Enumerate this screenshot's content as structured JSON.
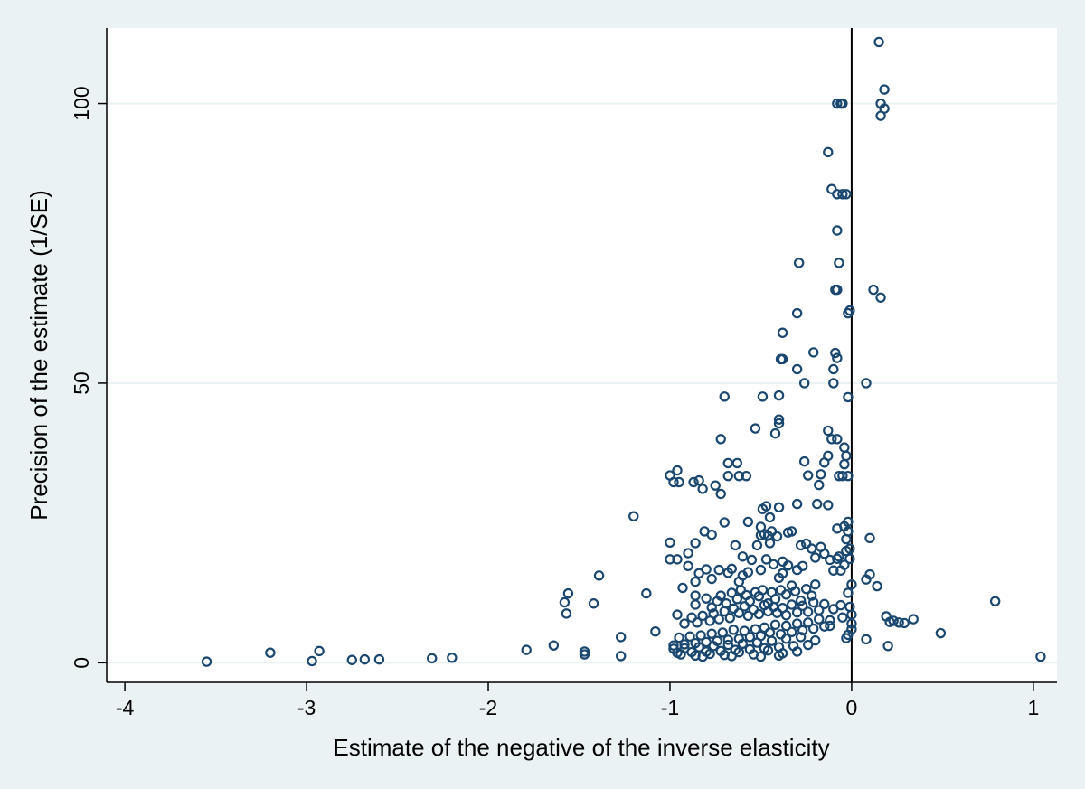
{
  "chart_data": {
    "type": "scatter",
    "title": "",
    "xlabel": "Estimate of the negative of the inverse elasticity",
    "ylabel": "Precision of the estimate (1/SE)",
    "xlim": [
      -4.1,
      1.13
    ],
    "ylim": [
      -3.5,
      113.5
    ],
    "x_ticks": [
      -4,
      -3,
      -2,
      -1,
      0,
      1
    ],
    "x_tick_labels": [
      "-4",
      "-3",
      "-2",
      "-1",
      "0",
      "1"
    ],
    "y_ticks": [
      0,
      50,
      100
    ],
    "y_tick_labels": [
      "0",
      "50",
      "100"
    ],
    "grid": "horizontal",
    "reference_line_x": 0,
    "marker": "hollow-circle",
    "colors": {
      "marker": "#1a476f",
      "background": "#eaf2f3",
      "plot_area": "#ffffff",
      "grid": "#eaf2f3",
      "axis": "#000000"
    },
    "points": [
      [
        -3.55,
        0.2
      ],
      [
        -3.2,
        1.8
      ],
      [
        -2.97,
        0.3
      ],
      [
        -2.93,
        2.1
      ],
      [
        -2.75,
        0.5
      ],
      [
        -2.68,
        0.6
      ],
      [
        -2.6,
        0.6
      ],
      [
        -2.31,
        0.8
      ],
      [
        -2.2,
        0.9
      ],
      [
        -1.79,
        2.3
      ],
      [
        -1.64,
        3.1
      ],
      [
        -1.47,
        1.5
      ],
      [
        -1.47,
        2.0
      ],
      [
        -1.27,
        1.2
      ],
      [
        -1.27,
        4.6
      ],
      [
        -1.57,
        8.8
      ],
      [
        -1.58,
        10.8
      ],
      [
        -1.56,
        12.4
      ],
      [
        -1.42,
        10.6
      ],
      [
        -1.39,
        15.6
      ],
      [
        -1.2,
        26.2
      ],
      [
        -1.13,
        12.4
      ],
      [
        -1.08,
        5.6
      ],
      [
        -1.0,
        33.5
      ],
      [
        -0.98,
        32.3
      ],
      [
        -0.96,
        34.4
      ],
      [
        -0.95,
        32.3
      ],
      [
        -0.87,
        32.3
      ],
      [
        -0.84,
        32.6
      ],
      [
        -0.82,
        31.1
      ],
      [
        -0.75,
        31.7
      ],
      [
        -0.72,
        30.2
      ],
      [
        -0.7,
        47.6
      ],
      [
        -0.72,
        40.0
      ],
      [
        -0.68,
        35.7
      ],
      [
        -0.68,
        33.4
      ],
      [
        -0.63,
        35.7
      ],
      [
        -0.62,
        33.4
      ],
      [
        -0.58,
        33.4
      ],
      [
        -1.0,
        21.5
      ],
      [
        -1.0,
        18.5
      ],
      [
        -0.96,
        18.5
      ],
      [
        -0.9,
        19.6
      ],
      [
        -0.86,
        21.4
      ],
      [
        -0.81,
        23.5
      ],
      [
        -0.77,
        22.9
      ],
      [
        -0.7,
        25.1
      ],
      [
        -0.64,
        21.0
      ],
      [
        -0.6,
        19.0
      ],
      [
        -0.57,
        25.2
      ],
      [
        -0.53,
        41.9
      ],
      [
        -0.49,
        47.6
      ],
      [
        -0.49,
        27.5
      ],
      [
        -0.47,
        28.0
      ],
      [
        -0.45,
        26.0
      ],
      [
        -0.4,
        47.8
      ],
      [
        -0.4,
        43.5
      ],
      [
        -0.4,
        42.8
      ],
      [
        -0.42,
        41.0
      ],
      [
        -0.39,
        54.3
      ],
      [
        -0.38,
        54.3
      ],
      [
        -0.38,
        59.0
      ],
      [
        -0.3,
        62.5
      ],
      [
        -0.29,
        71.5
      ],
      [
        -0.3,
        52.5
      ],
      [
        -0.26,
        50.0
      ],
      [
        -0.21,
        55.5
      ],
      [
        -0.13,
        91.3
      ],
      [
        -0.11,
        84.7
      ],
      [
        -0.08,
        83.8
      ],
      [
        -0.05,
        83.8
      ],
      [
        -0.03,
        83.8
      ],
      [
        -0.08,
        100.0
      ],
      [
        -0.06,
        100.0
      ],
      [
        -0.05,
        100.0
      ],
      [
        -0.08,
        77.3
      ],
      [
        -0.07,
        71.5
      ],
      [
        -0.09,
        66.7
      ],
      [
        -0.08,
        66.7
      ],
      [
        -0.02,
        62.5
      ],
      [
        -0.01,
        63.0
      ],
      [
        -0.09,
        55.4
      ],
      [
        -0.1,
        52.5
      ],
      [
        -0.08,
        54.5
      ],
      [
        -0.1,
        50.0
      ],
      [
        -0.02,
        47.5
      ],
      [
        -0.13,
        41.5
      ],
      [
        -0.11,
        40.0
      ],
      [
        -0.08,
        40.0
      ],
      [
        -0.04,
        38.5
      ],
      [
        -0.03,
        37.0
      ],
      [
        -0.04,
        35.5
      ],
      [
        -0.07,
        33.4
      ],
      [
        -0.05,
        33.4
      ],
      [
        -0.02,
        33.4
      ],
      [
        -0.13,
        37.0
      ],
      [
        -0.15,
        35.8
      ],
      [
        -0.17,
        33.7
      ],
      [
        -0.18,
        31.8
      ],
      [
        -0.19,
        28.4
      ],
      [
        -0.13,
        28.2
      ],
      [
        -0.26,
        36.0
      ],
      [
        -0.24,
        33.5
      ],
      [
        -0.3,
        28.4
      ],
      [
        -0.33,
        23.5
      ],
      [
        -0.35,
        23.3
      ],
      [
        -0.4,
        27.8
      ],
      [
        -0.41,
        22.6
      ],
      [
        -0.44,
        23.5
      ],
      [
        -0.46,
        22.7
      ],
      [
        -0.48,
        23.0
      ],
      [
        -0.5,
        22.8
      ],
      [
        -0.5,
        24.3
      ],
      [
        -0.52,
        21.0
      ],
      [
        -0.45,
        21.4
      ],
      [
        -0.02,
        25.2
      ],
      [
        -0.02,
        23.5
      ],
      [
        -0.04,
        24.4
      ],
      [
        -0.08,
        24.0
      ],
      [
        -0.03,
        22.1
      ],
      [
        -0.03,
        20.0
      ],
      [
        -0.01,
        20.4
      ],
      [
        -0.01,
        18.6
      ],
      [
        -0.04,
        17.5
      ],
      [
        -0.06,
        16.5
      ],
      [
        -0.07,
        19.0
      ],
      [
        -0.08,
        18.6
      ],
      [
        0.0,
        14.0
      ],
      [
        -0.02,
        12.5
      ],
      [
        -0.01,
        10.0
      ],
      [
        0.0,
        8.6
      ],
      [
        0.0,
        7.0
      ],
      [
        0.0,
        6.0
      ],
      [
        -0.02,
        5.0
      ],
      [
        -0.03,
        4.4
      ],
      [
        -0.05,
        8.1
      ],
      [
        -0.06,
        10.3
      ],
      [
        -0.1,
        9.6
      ],
      [
        -0.12,
        6.6
      ],
      [
        0.08,
        50.0
      ],
      [
        0.12,
        66.7
      ],
      [
        0.16,
        65.3
      ],
      [
        0.15,
        111.0
      ],
      [
        0.18,
        102.5
      ],
      [
        0.16,
        100.0
      ],
      [
        0.18,
        99.1
      ],
      [
        0.16,
        97.8
      ],
      [
        0.1,
        22.3
      ],
      [
        0.08,
        14.9
      ],
      [
        0.1,
        15.8
      ],
      [
        0.14,
        13.7
      ],
      [
        0.19,
        8.3
      ],
      [
        0.21,
        7.3
      ],
      [
        0.23,
        7.5
      ],
      [
        0.26,
        7.2
      ],
      [
        0.29,
        7.1
      ],
      [
        0.34,
        7.8
      ],
      [
        0.49,
        5.3
      ],
      [
        0.79,
        11.0
      ],
      [
        1.04,
        1.1
      ],
      [
        0.08,
        4.2
      ],
      [
        0.2,
        3.0
      ],
      [
        -0.28,
        21.0
      ],
      [
        -0.25,
        21.3
      ],
      [
        -0.22,
        20.4
      ],
      [
        -0.2,
        18.8
      ],
      [
        -0.17,
        20.7
      ],
      [
        -0.15,
        19.5
      ],
      [
        -0.12,
        18.4
      ],
      [
        -0.1,
        16.5
      ],
      [
        -0.27,
        17.3
      ],
      [
        -0.3,
        16.6
      ],
      [
        -0.35,
        17.4
      ],
      [
        -0.38,
        18.1
      ],
      [
        -0.38,
        16.0
      ],
      [
        -0.4,
        15.2
      ],
      [
        -0.43,
        17.6
      ],
      [
        -0.47,
        18.5
      ],
      [
        -0.5,
        16.6
      ],
      [
        -0.55,
        18.4
      ],
      [
        -0.57,
        16.2
      ],
      [
        -0.6,
        15.6
      ],
      [
        -0.62,
        14.5
      ],
      [
        -0.66,
        16.8
      ],
      [
        -0.68,
        16.1
      ],
      [
        -0.73,
        16.6
      ],
      [
        -0.77,
        15.0
      ],
      [
        -0.8,
        16.7
      ],
      [
        -0.84,
        16.0
      ],
      [
        -0.86,
        14.5
      ],
      [
        -0.9,
        17.3
      ],
      [
        -0.93,
        13.4
      ],
      [
        -0.86,
        12.0
      ],
      [
        -0.86,
        10.4
      ],
      [
        -0.2,
        14.0
      ],
      [
        -0.22,
        12.0
      ],
      [
        -0.25,
        13.2
      ],
      [
        -0.28,
        11.1
      ],
      [
        -0.31,
        12.8
      ],
      [
        -0.33,
        13.8
      ],
      [
        -0.36,
        12.2
      ],
      [
        -0.39,
        13.0
      ],
      [
        -0.42,
        11.4
      ],
      [
        -0.44,
        12.6
      ],
      [
        -0.46,
        10.6
      ],
      [
        -0.49,
        13.0
      ],
      [
        -0.51,
        11.9
      ],
      [
        -0.53,
        12.6
      ],
      [
        -0.56,
        11.0
      ],
      [
        -0.58,
        12.1
      ],
      [
        -0.61,
        13.0
      ],
      [
        -0.63,
        11.4
      ],
      [
        -0.66,
        12.5
      ],
      [
        -0.69,
        10.6
      ],
      [
        -0.72,
        12.0
      ],
      [
        -0.74,
        11.0
      ],
      [
        -0.77,
        9.9
      ],
      [
        -0.8,
        11.5
      ],
      [
        -0.15,
        10.5
      ],
      [
        -0.18,
        9.4
      ],
      [
        -0.21,
        10.8
      ],
      [
        -0.24,
        9.1
      ],
      [
        -0.27,
        10.2
      ],
      [
        -0.3,
        9.0
      ],
      [
        -0.33,
        10.4
      ],
      [
        -0.36,
        8.5
      ],
      [
        -0.38,
        9.8
      ],
      [
        -0.41,
        8.9
      ],
      [
        -0.43,
        10.0
      ],
      [
        -0.46,
        9.2
      ],
      [
        -0.48,
        10.3
      ],
      [
        -0.51,
        8.7
      ],
      [
        -0.54,
        9.5
      ],
      [
        -0.57,
        8.4
      ],
      [
        -0.59,
        10.1
      ],
      [
        -0.62,
        8.9
      ],
      [
        -0.65,
        9.7
      ],
      [
        -0.67,
        8.0
      ],
      [
        -0.7,
        9.2
      ],
      [
        -0.73,
        7.8
      ],
      [
        -0.76,
        8.8
      ],
      [
        -0.78,
        7.5
      ],
      [
        -0.82,
        8.4
      ],
      [
        -0.85,
        7.2
      ],
      [
        -0.88,
        8.1
      ],
      [
        -0.92,
        7.0
      ],
      [
        -0.96,
        8.6
      ],
      [
        -0.12,
        7.6
      ],
      [
        -0.15,
        6.5
      ],
      [
        -0.18,
        7.8
      ],
      [
        -0.21,
        6.1
      ],
      [
        -0.24,
        7.2
      ],
      [
        -0.27,
        5.8
      ],
      [
        -0.3,
        7.0
      ],
      [
        -0.33,
        5.5
      ],
      [
        -0.36,
        6.6
      ],
      [
        -0.39,
        5.1
      ],
      [
        -0.42,
        6.8
      ],
      [
        -0.45,
        5.4
      ],
      [
        -0.48,
        6.3
      ],
      [
        -0.5,
        4.8
      ],
      [
        -0.53,
        6.0
      ],
      [
        -0.56,
        4.6
      ],
      [
        -0.59,
        5.7
      ],
      [
        -0.62,
        4.3
      ],
      [
        -0.65,
        5.9
      ],
      [
        -0.68,
        4.1
      ],
      [
        -0.71,
        5.4
      ],
      [
        -0.74,
        3.9
      ],
      [
        -0.77,
        5.2
      ],
      [
        -0.8,
        3.7
      ],
      [
        -0.83,
        4.9
      ],
      [
        -0.86,
        3.5
      ],
      [
        -0.89,
        4.7
      ],
      [
        -0.92,
        3.3
      ],
      [
        -0.95,
        4.5
      ],
      [
        -0.98,
        3.1
      ],
      [
        -0.2,
        4.0
      ],
      [
        -0.24,
        3.2
      ],
      [
        -0.28,
        4.6
      ],
      [
        -0.32,
        3.0
      ],
      [
        -0.36,
        4.3
      ],
      [
        -0.4,
        2.8
      ],
      [
        -0.44,
        3.9
      ],
      [
        -0.48,
        2.6
      ],
      [
        -0.52,
        3.6
      ],
      [
        -0.56,
        2.4
      ],
      [
        -0.6,
        3.4
      ],
      [
        -0.64,
        2.3
      ],
      [
        -0.68,
        3.2
      ],
      [
        -0.72,
        2.1
      ],
      [
        -0.76,
        3.0
      ],
      [
        -0.8,
        2.0
      ],
      [
        -0.84,
        2.8
      ],
      [
        -0.88,
        1.9
      ],
      [
        -0.92,
        2.6
      ],
      [
        -0.96,
        1.8
      ],
      [
        -0.98,
        2.5
      ],
      [
        -0.3,
        2.0
      ],
      [
        -0.38,
        1.7
      ],
      [
        -0.46,
        2.2
      ],
      [
        -0.54,
        1.5
      ],
      [
        -0.62,
        1.9
      ],
      [
        -0.7,
        1.4
      ],
      [
        -0.78,
        1.6
      ],
      [
        -0.86,
        1.3
      ],
      [
        -0.94,
        1.5
      ],
      [
        -0.4,
        1.3
      ],
      [
        -0.5,
        1.1
      ],
      [
        -0.66,
        1.2
      ],
      [
        -0.82,
        1.1
      ]
    ]
  }
}
